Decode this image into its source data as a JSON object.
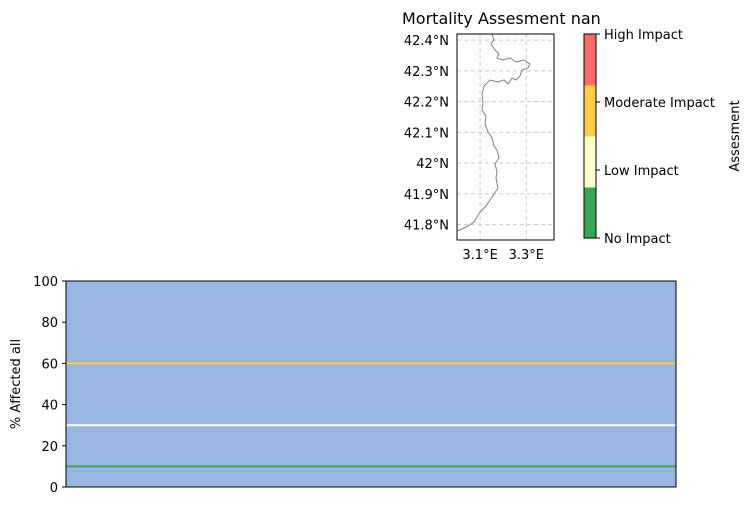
{
  "chart_data": [
    {
      "type": "map",
      "title": "Mortality Assesment nan",
      "lat_ticks": [
        42.4,
        42.3,
        42.2,
        42.1,
        42.0,
        41.9,
        41.8
      ],
      "lat_tick_labels": [
        "42.4°N",
        "42.3°N",
        "42.2°N",
        "42.1°N",
        "42°N",
        "41.9°N",
        "41.8°N"
      ],
      "lon_ticks": [
        3.1,
        3.3
      ],
      "lon_tick_labels": [
        "3.1°E",
        "3.3°E"
      ],
      "lat_range": [
        41.75,
        42.42
      ],
      "lon_range": [
        3.0,
        3.42
      ],
      "grid": true,
      "colorbar": {
        "label": "Assesment",
        "levels": [
          "No Impact",
          "Low Impact",
          "Moderate Impact",
          "High Impact"
        ],
        "colors": [
          "#3aa655",
          "#ffffcc",
          "#ffcc44",
          "#ff6b6b"
        ]
      }
    },
    {
      "type": "area",
      "ylabel": "% Affected all",
      "xlabel": "",
      "ylim": [
        0,
        100
      ],
      "yticks": [
        0,
        20,
        40,
        60,
        80,
        100
      ],
      "fill_value": 100,
      "fill_color": "#98b6e2",
      "thresholds": [
        {
          "value": 60,
          "color": "#ffcc44"
        },
        {
          "value": 30,
          "color": "#ffffff"
        },
        {
          "value": 10,
          "color": "#3aa655"
        }
      ]
    }
  ]
}
